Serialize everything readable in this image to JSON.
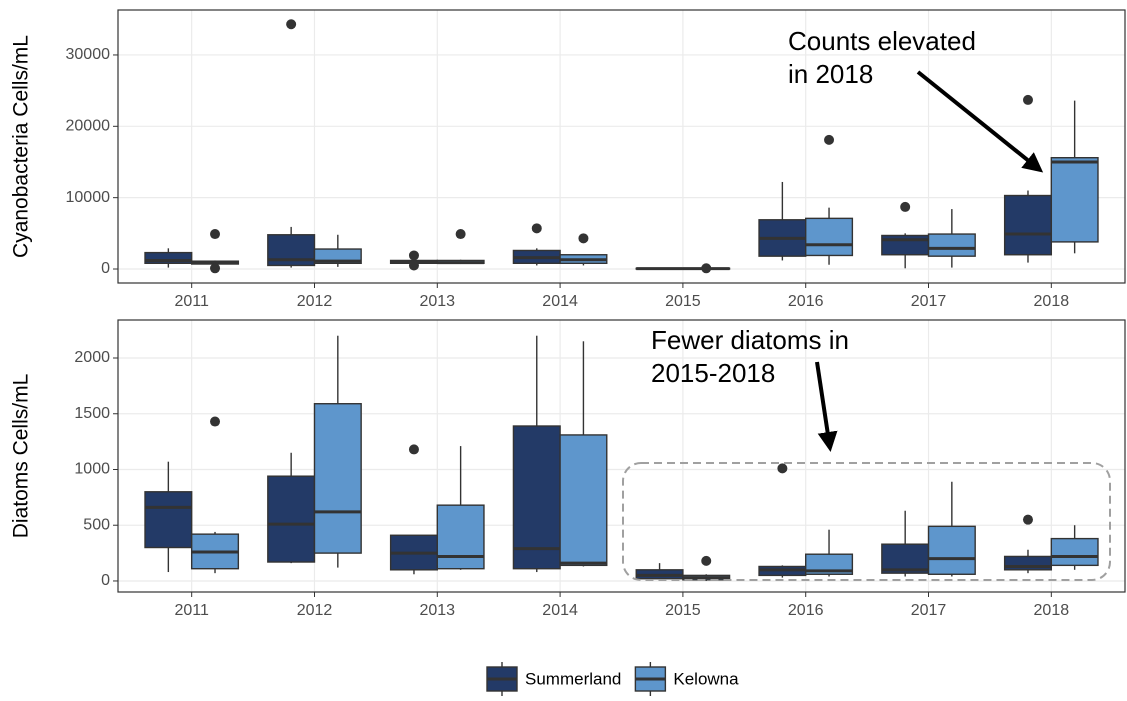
{
  "chart_data": [
    {
      "type": "boxplot",
      "ylabel": "Cyanobacteria  Cells/mL",
      "categories": [
        "2011",
        "2012",
        "2013",
        "2014",
        "2015",
        "2016",
        "2017",
        "2018"
      ],
      "ylim": [
        -1960,
        36300
      ],
      "yticks": [
        0,
        10000,
        20000,
        30000
      ],
      "grid": true,
      "annotations": [
        "Counts  elevated",
        "in 2018"
      ],
      "series": [
        {
          "name": "Summerland",
          "color": "#233a67",
          "values": [
            {
              "min": 200,
              "q1": 800,
              "median": 1200,
              "q3": 2300,
              "max": 2900,
              "outliers": []
            },
            {
              "min": 200,
              "q1": 500,
              "median": 1300,
              "q3": 4800,
              "max": 5900,
              "outliers": [
                34300
              ]
            },
            {
              "min": 600,
              "q1": 800,
              "median": 1000,
              "q3": 1200,
              "max": 1400,
              "outliers": [
                1900,
                500
              ]
            },
            {
              "min": 500,
              "q1": 800,
              "median": 1600,
              "q3": 2600,
              "max": 2900,
              "outliers": [
                5700
              ]
            },
            {
              "min": 0,
              "q1": 0,
              "median": 50,
              "q3": 100,
              "max": 100,
              "outliers": []
            },
            {
              "min": 1200,
              "q1": 1800,
              "median": 4300,
              "q3": 6900,
              "max": 12200,
              "outliers": []
            },
            {
              "min": 100,
              "q1": 2000,
              "median": 4100,
              "q3": 4700,
              "max": 5000,
              "outliers": [
                8700
              ]
            },
            {
              "min": 900,
              "q1": 2000,
              "median": 4900,
              "q3": 10300,
              "max": 11000,
              "outliers": [
                23700
              ]
            }
          ]
        },
        {
          "name": "Kelowna",
          "color": "#5e96cc",
          "values": [
            {
              "min": 600,
              "q1": 700,
              "median": 900,
              "q3": 1100,
              "max": 1200,
              "outliers": [
                4900,
                100
              ]
            },
            {
              "min": 300,
              "q1": 800,
              "median": 1100,
              "q3": 2800,
              "max": 4800,
              "outliers": []
            },
            {
              "min": 700,
              "q1": 800,
              "median": 900,
              "q3": 1200,
              "max": 1300,
              "outliers": [
                4900
              ]
            },
            {
              "min": 500,
              "q1": 800,
              "median": 1300,
              "q3": 2000,
              "max": 2000,
              "outliers": [
                4300
              ]
            },
            {
              "min": 0,
              "q1": 0,
              "median": 50,
              "q3": 100,
              "max": 150,
              "outliers": [
                100
              ]
            },
            {
              "min": 600,
              "q1": 1900,
              "median": 3400,
              "q3": 7100,
              "max": 8600,
              "outliers": [
                18100
              ]
            },
            {
              "min": 200,
              "q1": 1800,
              "median": 2900,
              "q3": 4900,
              "max": 8400,
              "outliers": []
            },
            {
              "min": 2200,
              "q1": 3800,
              "median": 15000,
              "q3": 15600,
              "max": 23600,
              "outliers": []
            }
          ]
        }
      ]
    },
    {
      "type": "boxplot",
      "ylabel": "Diatoms  Cells/mL",
      "categories": [
        "2011",
        "2012",
        "2013",
        "2014",
        "2015",
        "2016",
        "2017",
        "2018"
      ],
      "ylim": [
        -99,
        2341
      ],
      "yticks": [
        0,
        500,
        1000,
        1500,
        2000
      ],
      "grid": true,
      "annotations": [
        "Fewer diatoms in",
        "2015-2018"
      ],
      "series": [
        {
          "name": "Summerland",
          "color": "#233a67",
          "values": [
            {
              "min": 80,
              "q1": 300,
              "median": 660,
              "q3": 800,
              "max": 1070,
              "outliers": []
            },
            {
              "min": 160,
              "q1": 170,
              "median": 510,
              "q3": 940,
              "max": 1150,
              "outliers": []
            },
            {
              "min": 60,
              "q1": 100,
              "median": 250,
              "q3": 410,
              "max": 410,
              "outliers": [
                1180
              ]
            },
            {
              "min": 80,
              "q1": 110,
              "median": 290,
              "q3": 1390,
              "max": 2200,
              "outliers": []
            },
            {
              "min": 10,
              "q1": 20,
              "median": 50,
              "q3": 100,
              "max": 160,
              "outliers": []
            },
            {
              "min": 30,
              "q1": 50,
              "median": 100,
              "q3": 130,
              "max": 140,
              "outliers": [
                1010
              ]
            },
            {
              "min": 40,
              "q1": 70,
              "median": 100,
              "q3": 330,
              "max": 630,
              "outliers": []
            },
            {
              "min": 70,
              "q1": 100,
              "median": 130,
              "q3": 220,
              "max": 280,
              "outliers": [
                550
              ]
            }
          ]
        },
        {
          "name": "Kelowna",
          "color": "#5e96cc",
          "values": [
            {
              "min": 70,
              "q1": 110,
              "median": 260,
              "q3": 420,
              "max": 440,
              "outliers": [
                1430
              ]
            },
            {
              "min": 120,
              "q1": 250,
              "median": 620,
              "q3": 1590,
              "max": 2200,
              "outliers": []
            },
            {
              "min": 100,
              "q1": 110,
              "median": 220,
              "q3": 680,
              "max": 1210,
              "outliers": []
            },
            {
              "min": 130,
              "q1": 140,
              "median": 160,
              "q3": 1310,
              "max": 2150,
              "outliers": []
            },
            {
              "min": 0,
              "q1": 10,
              "median": 30,
              "q3": 50,
              "max": 60,
              "outliers": [
                180
              ]
            },
            {
              "min": 40,
              "q1": 60,
              "median": 90,
              "q3": 240,
              "max": 460,
              "outliers": []
            },
            {
              "min": 40,
              "q1": 60,
              "median": 200,
              "q3": 490,
              "max": 890,
              "outliers": []
            },
            {
              "min": 100,
              "q1": 140,
              "median": 220,
              "q3": 380,
              "max": 500,
              "outliers": []
            }
          ]
        }
      ]
    }
  ]
}
